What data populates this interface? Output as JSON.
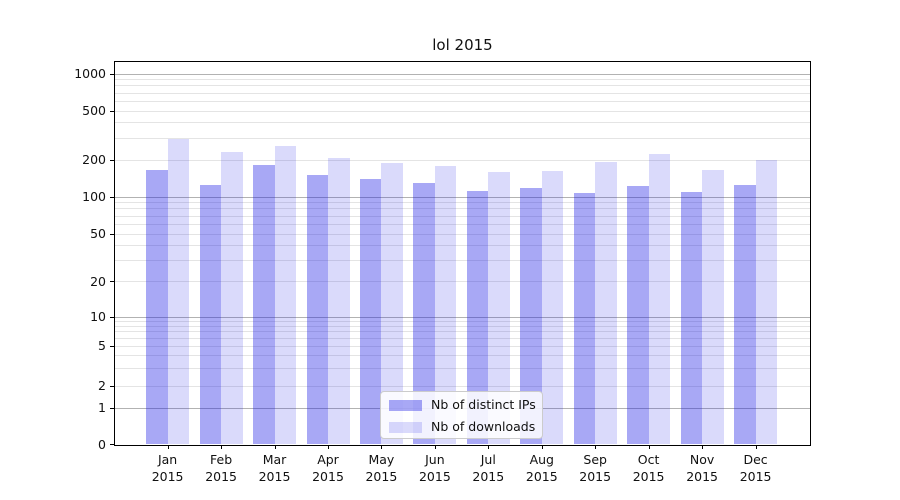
{
  "chart_data": {
    "type": "bar",
    "title": "lol 2015",
    "categories": [
      "Jan 2015",
      "Feb 2015",
      "Mar 2015",
      "Apr 2015",
      "May 2015",
      "Jun 2015",
      "Jul 2015",
      "Aug 2015",
      "Sep 2015",
      "Oct 2015",
      "Nov 2015",
      "Dec 2015"
    ],
    "x_tick_months": [
      "Jan",
      "Feb",
      "Mar",
      "Apr",
      "May",
      "Jun",
      "Jul",
      "Aug",
      "Sep",
      "Oct",
      "Nov",
      "Dec"
    ],
    "x_tick_year": "2015",
    "series": [
      {
        "name": "Nb of distinct IPs",
        "color_hex": "#a8a8f6",
        "color_rgba": "rgba(25,25,230,0.38)",
        "values": [
          165,
          123,
          182,
          150,
          140,
          128,
          111,
          118,
          107,
          122,
          109,
          125
        ]
      },
      {
        "name": "Nb of downloads",
        "color_hex": "#dadafb",
        "color_rgba": "rgba(25,25,230,0.16)",
        "values": [
          295,
          230,
          260,
          205,
          187,
          177,
          157,
          160,
          190,
          220,
          163,
          198
        ]
      }
    ],
    "yscale": "symlog",
    "yticks": [
      0,
      1,
      2,
      5,
      10,
      20,
      50,
      100,
      200,
      500,
      1000
    ],
    "ytick_labels": [
      "1000",
      "500",
      "200",
      "100",
      "50",
      "20",
      "10",
      "5",
      "2",
      "1",
      "0"
    ],
    "ylim": [
      0,
      1250
    ],
    "xlabel": "",
    "ylabel": "",
    "grid": true,
    "legend_position": "lower center",
    "colors": {
      "major_gridline": "#b2b2b2",
      "minor_gridline": "#e4e4e4",
      "axis": "#000000",
      "text": "#111111"
    }
  }
}
